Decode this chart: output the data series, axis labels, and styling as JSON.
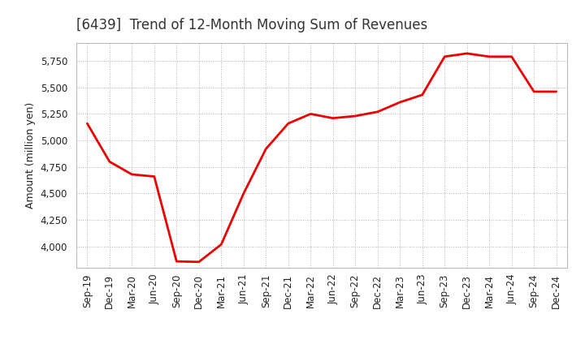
{
  "title": "[6439]  Trend of 12-Month Moving Sum of Revenues",
  "ylabel": "Amount (million yen)",
  "background_color": "#ffffff",
  "line_color": "#ee0000",
  "grid_color": "#aaaaaa",
  "x_labels": [
    "Sep-19",
    "Dec-19",
    "Mar-20",
    "Jun-20",
    "Sep-20",
    "Dec-20",
    "Mar-21",
    "Jun-21",
    "Sep-21",
    "Dec-21",
    "Mar-22",
    "Jun-22",
    "Sep-22",
    "Dec-22",
    "Mar-23",
    "Jun-23",
    "Sep-23",
    "Dec-23",
    "Mar-24",
    "Jun-24",
    "Sep-24",
    "Dec-24"
  ],
  "values": [
    5160,
    4800,
    4680,
    4660,
    3860,
    3855,
    4020,
    4500,
    4920,
    5160,
    5250,
    5210,
    5230,
    5270,
    5360,
    5430,
    5790,
    5820,
    5790,
    5790,
    5460,
    5460
  ],
  "ylim_min": 3800,
  "ylim_max": 5920,
  "yticks": [
    4000,
    4250,
    4500,
    4750,
    5000,
    5250,
    5500,
    5750
  ],
  "title_fontsize": 12,
  "title_color": "#333333",
  "label_fontsize": 9,
  "tick_fontsize": 8.5
}
